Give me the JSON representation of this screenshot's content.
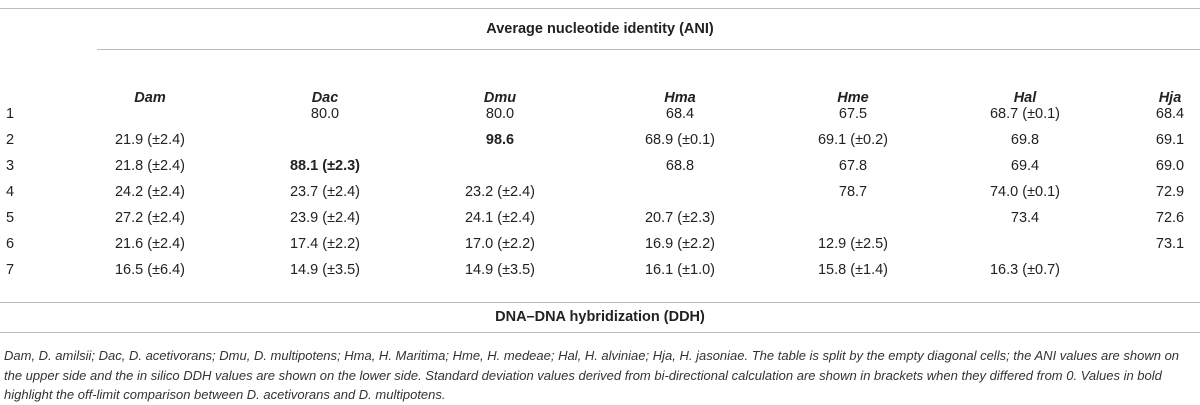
{
  "table": {
    "upper_header": "Average nucleotide identity (ANI)",
    "lower_header": "DNA–DNA hybridization (DDH)",
    "columns": [
      "Dam",
      "Dac",
      "Dmu",
      "Hma",
      "Hme",
      "Hal",
      "Hja"
    ],
    "rows": [
      {
        "label": "1",
        "cells": [
          "",
          "80.0",
          "80.0",
          "68.4",
          "67.5",
          "68.7 (±0.1)",
          "68.4"
        ]
      },
      {
        "label": "2",
        "cells": [
          "21.9 (±2.4)",
          "",
          "98.6",
          "68.9 (±0.1)",
          "69.1 (±0.2)",
          "69.8",
          "69.1"
        ]
      },
      {
        "label": "3",
        "cells": [
          "21.8 (±2.4)",
          "88.1 (±2.3)",
          "",
          "68.8",
          "67.8",
          "69.4",
          "69.0"
        ]
      },
      {
        "label": "4",
        "cells": [
          "24.2 (±2.4)",
          "23.7 (±2.4)",
          "23.2 (±2.4)",
          "",
          "78.7",
          "74.0 (±0.1)",
          "72.9"
        ]
      },
      {
        "label": "5",
        "cells": [
          "27.2 (±2.4)",
          "23.9 (±2.4)",
          "24.1 (±2.4)",
          "20.7 (±2.3)",
          "",
          "73.4",
          "72.6"
        ]
      },
      {
        "label": "6",
        "cells": [
          "21.6 (±2.4)",
          "17.4 (±2.2)",
          "17.0 (±2.2)",
          "16.9 (±2.2)",
          "12.9 (±2.5)",
          "",
          "73.1"
        ]
      },
      {
        "label": "7",
        "cells": [
          "16.5 (±6.4)",
          "14.9 (±3.5)",
          "14.9 (±3.5)",
          "16.1 (±1.0)",
          "15.8 (±1.4)",
          "16.3 (±0.7)",
          ""
        ]
      }
    ],
    "bold_cells": [
      [
        1,
        2
      ],
      [
        2,
        1
      ]
    ]
  },
  "caption": "Dam, D. amilsii; Dac, D. acetivorans; Dmu, D. multipotens; Hma, H. Maritima; Hme, H. medeae; Hal, H. alviniae; Hja, H. jasoniae. The table is split by the empty diagonal cells; the ANI values are shown on the upper side and the in silico DDH values are shown on the lower side. Standard deviation values derived from bi-directional calculation are shown in brackets when they differed from 0. Values in bold highlight the off-limit comparison between D. acetivorans and D. multipotens."
}
